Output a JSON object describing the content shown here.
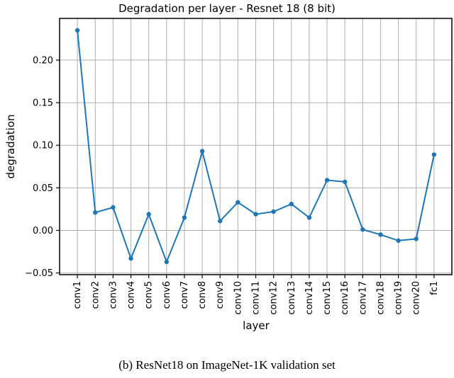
{
  "caption": "(b) ResNet18 on ImageNet-1K validation set",
  "chart_data": {
    "type": "line",
    "title": "Degradation per layer - Resnet 18 (8 bit)",
    "xlabel": "layer",
    "ylabel": "degradation",
    "categories": [
      "conv1",
      "conv2",
      "conv3",
      "conv4",
      "conv5",
      "conv6",
      "conv7",
      "conv8",
      "conv9",
      "conv10",
      "conv11",
      "conv12",
      "conv13",
      "conv14",
      "conv15",
      "conv16",
      "conv17",
      "conv18",
      "conv19",
      "conv20",
      "fc1"
    ],
    "values": [
      0.235,
      0.021,
      0.027,
      -0.033,
      0.019,
      -0.037,
      0.015,
      0.093,
      0.011,
      0.033,
      0.019,
      0.022,
      0.031,
      0.015,
      0.059,
      0.057,
      0.001,
      -0.005,
      -0.012,
      -0.01,
      0.089
    ],
    "yticks": [
      0.2,
      0.15,
      0.1,
      0.05,
      0.0,
      -0.05
    ],
    "ytick_labels": [
      "0.20",
      "0.15",
      "0.10",
      "0.05",
      "0.00",
      "−0.05"
    ],
    "ylim": [
      -0.052,
      0.249
    ],
    "grid": true,
    "legend": null,
    "marker": "circle",
    "line_color": "#1f77b4",
    "grid_color": "#b0b0b0",
    "spine_color": "#000000"
  }
}
